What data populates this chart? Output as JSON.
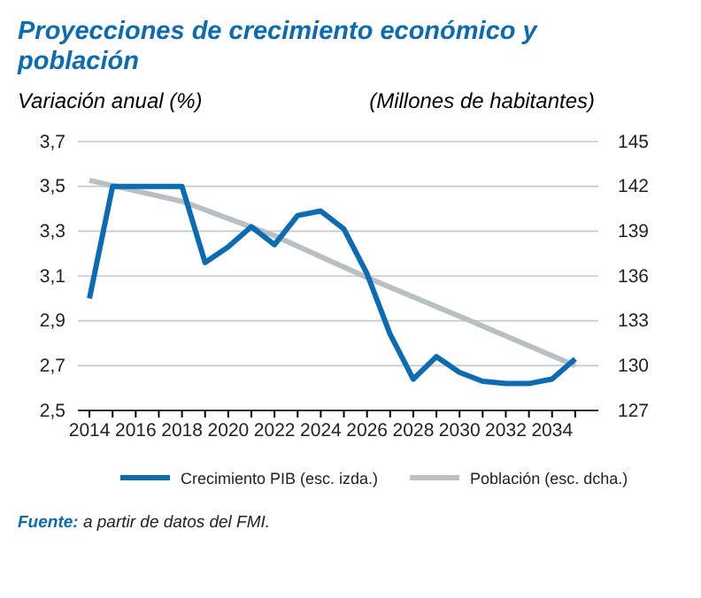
{
  "chart_data": {
    "type": "line",
    "title": "Proyecciones de crecimiento económico y población",
    "ylabel": "Variación anual (%)",
    "y2label": "(Millones de habitantes)",
    "xlim": [
      2013.5,
      2036
    ],
    "xticks": [
      2014,
      {
        "value": 2015,
        "label": null
      },
      2016,
      {
        "value": 2017,
        "label": null
      },
      2018,
      {
        "value": 2019,
        "label": null
      },
      2020,
      {
        "value": 2021,
        "label": null
      },
      2022,
      {
        "value": 2023,
        "label": null
      },
      2024,
      {
        "value": 2025,
        "label": null
      },
      2026,
      {
        "value": 2027,
        "label": null
      },
      2028,
      {
        "value": 2029,
        "label": null
      },
      2030,
      {
        "value": 2031,
        "label": null
      },
      2032,
      {
        "value": 2033,
        "label": null
      },
      2034,
      {
        "value": 2035,
        "label": null
      }
    ],
    "ylim": [
      2.5,
      3.7
    ],
    "yticks": [
      {
        "value": 2.5,
        "label": "2,5"
      },
      {
        "value": 2.7,
        "label": "2,7"
      },
      {
        "value": 2.9,
        "label": "2,9"
      },
      {
        "value": 3.1,
        "label": "3,1"
      },
      {
        "value": 3.3,
        "label": "3,3"
      },
      {
        "value": 3.5,
        "label": "3,5"
      },
      {
        "value": 3.7,
        "label": "3,7"
      }
    ],
    "y2lim": [
      127,
      145
    ],
    "y2ticks": [
      127,
      130,
      133,
      136,
      139,
      142,
      145
    ],
    "grid": "y",
    "legend": "bottom",
    "line_style": "solid",
    "marker": "none",
    "series": [
      {
        "name": "Crecimiento PIB (esc. izda.)",
        "color": "#0a6cb4",
        "x": [
          2014,
          2015,
          2016,
          2017,
          2018,
          2019,
          2020,
          2021,
          2022,
          2023,
          2024,
          2025,
          2026,
          2027,
          2028,
          2029,
          2030,
          2031,
          2032,
          2033,
          2034,
          2035
        ],
        "values": [
          3.0,
          3.5,
          3.5,
          3.5,
          3.5,
          3.16,
          3.23,
          3.32,
          3.24,
          3.37,
          3.39,
          3.31,
          3.11,
          2.84,
          2.64,
          2.74,
          2.67,
          2.63,
          2.62,
          2.62,
          2.64,
          2.73
        ]
      },
      {
        "name": "Población (esc. dcha.)",
        "color": "#b8c0c4",
        "axis": "y2",
        "x": [
          2014,
          2018,
          2022,
          2026,
          2030,
          2035
        ],
        "values": [
          142.4,
          141.0,
          138.7,
          135.9,
          133.3,
          130.0
        ]
      }
    ],
    "annotations": [
      "Fuente: a partir de datos del FMI."
    ]
  }
}
